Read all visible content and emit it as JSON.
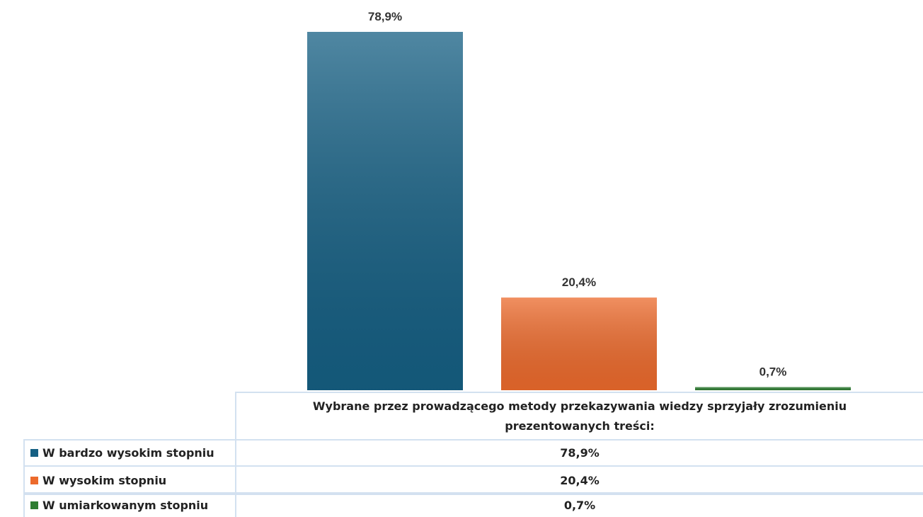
{
  "chart_data": {
    "type": "bar",
    "categories": [
      "Wybrane przez prowadzącego metody przekazywania wiedzy sprzyjały zrozumieniu prezentowanych treści:"
    ],
    "series": [
      {
        "name": "W bardzo wysokim stopniu",
        "color": "#155f83",
        "values": [
          78.9
        ],
        "value_labels": [
          "78,9%"
        ]
      },
      {
        "name": "W wysokim stopniu",
        "color": "#ec6a2c",
        "values": [
          20.4
        ],
        "value_labels": [
          "20,4%"
        ]
      },
      {
        "name": "W umiarkowanym stopniu",
        "color": "#2e7d32",
        "values": [
          0.7
        ],
        "value_labels": [
          "0,7%"
        ]
      }
    ]
  }
}
